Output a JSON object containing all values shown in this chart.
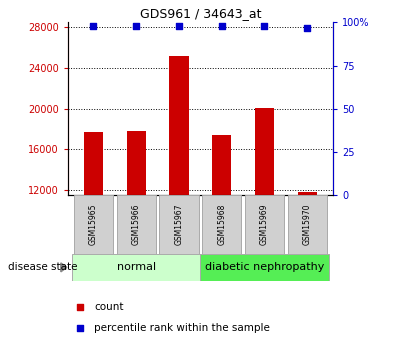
{
  "title": "GDS961 / 34643_at",
  "samples": [
    "GSM15965",
    "GSM15966",
    "GSM15967",
    "GSM15968",
    "GSM15969",
    "GSM15970"
  ],
  "counts": [
    17700,
    17800,
    25200,
    17400,
    20100,
    11800
  ],
  "percentiles": [
    98,
    98,
    98,
    98,
    98,
    97
  ],
  "ylim_left": [
    11500,
    28500
  ],
  "ylim_right": [
    0,
    100
  ],
  "yticks_left": [
    12000,
    16000,
    20000,
    24000,
    28000
  ],
  "yticks_right": [
    0,
    25,
    50,
    75,
    100
  ],
  "ytick_labels_right": [
    "0",
    "25",
    "50",
    "75",
    "100%"
  ],
  "bar_color": "#cc0000",
  "dot_color": "#0000cc",
  "normal_label": "normal",
  "disease_label": "diabetic nephropathy",
  "normal_color": "#ccffcc",
  "disease_color": "#55ee55",
  "legend_count_label": "count",
  "legend_pct_label": "percentile rank within the sample",
  "disease_state_label": "disease state",
  "tick_color_left": "#cc0000",
  "tick_color_right": "#0000cc",
  "box_color": "#d0d0d0"
}
